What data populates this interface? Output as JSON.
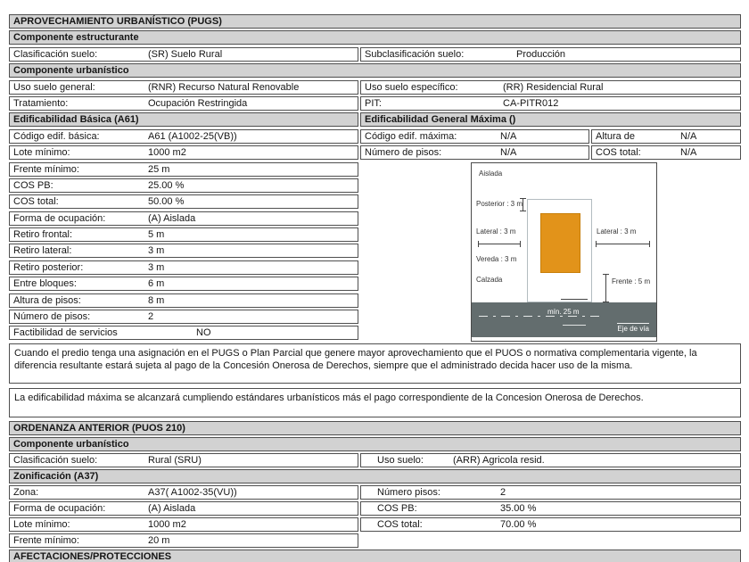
{
  "pugs": {
    "title": "APROVECHAMIENTO URBANÍSTICO (PUGS)",
    "componente_estructurante": "Componente  estructurante",
    "componente_urbanistico": "Componente  urbanístico",
    "clasificacion": {
      "label": "Clasificación suelo:",
      "value": "(SR) Suelo Rural"
    },
    "subclasificacion": {
      "label": "Subclasificación suelo:",
      "value": "Producción"
    },
    "uso_general": {
      "label": "Uso suelo general:",
      "value": "(RNR) Recurso Natural Renovable"
    },
    "uso_especifico": {
      "label": "Uso suelo específico:",
      "value": "(RR) Residencial Rural"
    },
    "tratamiento": {
      "label": "Tratamiento:",
      "value": "Ocupación Restringida"
    },
    "pit": {
      "label": "PIT:",
      "value": "CA-PITR012"
    },
    "edif_basica_header": "Edificabilidad Básica (A61)",
    "edif_maxima_header": "Edificabilidad General Máxima ()",
    "edif_basica_rows": [
      {
        "label": "Código edif. básica:",
        "value": "A61 (A1002-25(VB))"
      },
      {
        "label": "Lote mínimo:",
        "value": "1000 m2"
      },
      {
        "label": "Frente mínimo:",
        "value": "25 m"
      },
      {
        "label": "COS PB:",
        "value": "25.00 %"
      },
      {
        "label": "COS total:",
        "value": "50.00 %"
      },
      {
        "label": "Forma de ocupación:",
        "value": "(A) Aislada"
      },
      {
        "label": "Retiro frontal:",
        "value": "5 m"
      },
      {
        "label": "Retiro lateral:",
        "value": "3 m"
      },
      {
        "label": "Retiro posterior:",
        "value": "3 m"
      },
      {
        "label": "Entre bloques:",
        "value": "6 m"
      },
      {
        "label": "Altura de pisos:",
        "value": "8 m"
      },
      {
        "label": "Número de pisos:",
        "value": "2"
      },
      {
        "label": "Factibilidad de servicios",
        "value": "NO"
      }
    ],
    "edif_maxima_rows": [
      {
        "label": "Código edif. máxima:",
        "value": "N/A",
        "label2": "Altura de",
        "value2": "N/A"
      },
      {
        "label": "Número de pisos:",
        "value": "N/A",
        "label2": "COS total:",
        "value2": "N/A"
      }
    ]
  },
  "diagram": {
    "occupation": "Aislada",
    "posterior": "Posterior : 3 m",
    "lateral_left": "Lateral : 3 m",
    "lateral_right": "Lateral : 3 m",
    "vereda": "Vereda : 3 m",
    "calzada": "Calzada",
    "frente": "Frente : 5 m",
    "road_width": "mín. 25 m",
    "road_axis": "Eje de vía",
    "building_color": "#e2931a",
    "road_color": "#636d6e"
  },
  "notes": [
    "Cuando el predio tenga una asignación en el PUGS o Plan Parcial que genere mayor aprovechamiento que el PUOS o normativa complementaria vigente, la diferencia resultante estará sujeta al pago de la Concesión Onerosa de Derechos, siempre que el administrado decida hacer uso de la misma.",
    "La edificabilidad máxima se alcanzará cumpliendo estándares urbanísticos más el pago correspondiente de la Concesion Onerosa de Derechos."
  ],
  "ordenanza": {
    "title": "ORDENANZA ANTERIOR (PUOS 210)",
    "componente_urbanistico": "Componente urbanístico",
    "clasificacion": {
      "label": "Clasificación suelo:",
      "value": "Rural (SRU)"
    },
    "uso_suelo": {
      "label": "Uso suelo:",
      "value": "(ARR) Agricola resid."
    },
    "zonificacion_header": "Zonificación (A37)",
    "left_rows": [
      {
        "label": "Zona:",
        "value": "A37( A1002-35(VU))"
      },
      {
        "label": "Forma de ocupación:",
        "value": "(A) Aislada"
      },
      {
        "label": "Lote mínimo:",
        "value": "1000 m2"
      },
      {
        "label": "Frente mínimo:",
        "value": "20 m"
      }
    ],
    "right_rows": [
      {
        "label": "Número pisos:",
        "value": "2"
      },
      {
        "label": "COS PB:",
        "value": "35.00 %"
      },
      {
        "label": "COS total:",
        "value": "70.00 %"
      }
    ]
  },
  "afectaciones_title": "AFECTACIONES/PROTECCIONES"
}
